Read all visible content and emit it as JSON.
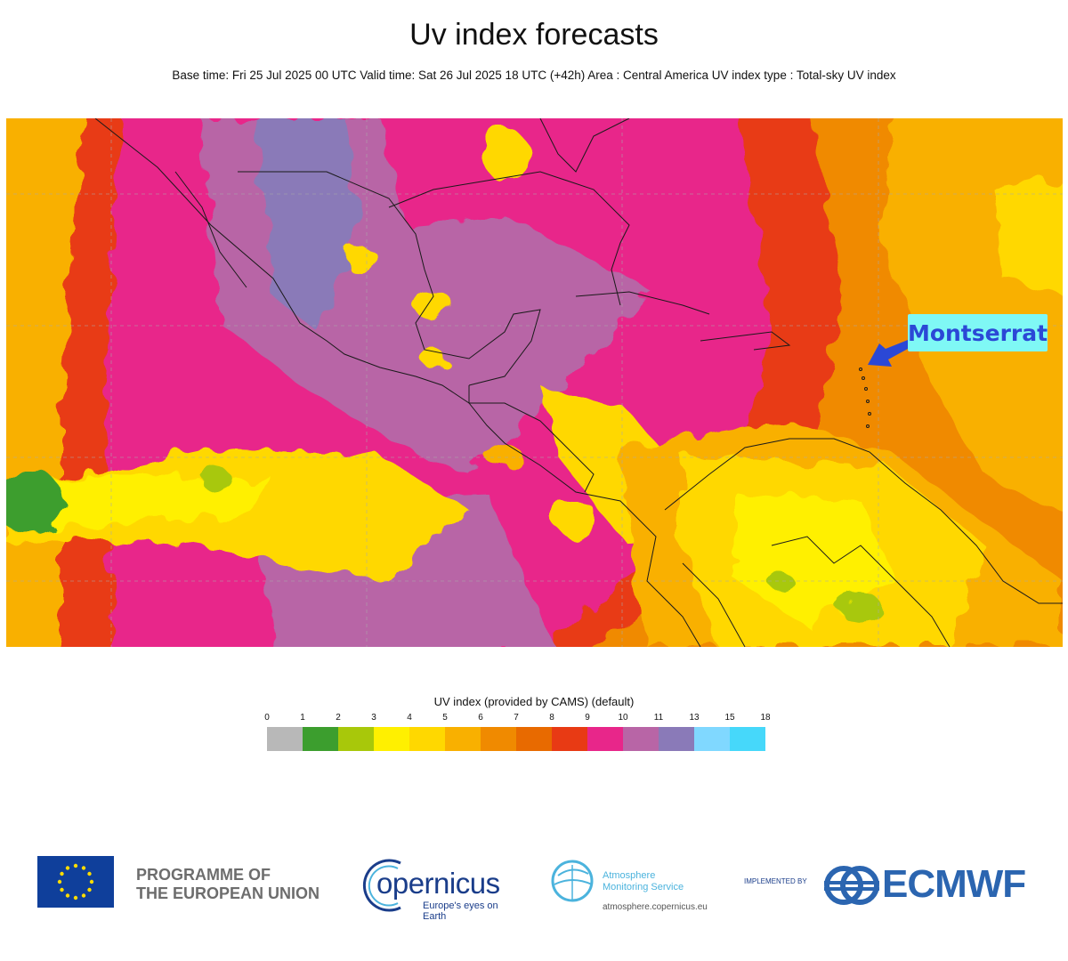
{
  "title": "Uv index forecasts",
  "subtitle": "Base time: Fri 25 Jul 2025 00 UTC Valid time: Sat 26 Jul 2025 18 UTC (+42h) Area : Central America UV index type : Total-sky UV index",
  "annotation": {
    "label": "Montserrat",
    "color": "#2b48d6",
    "background": "#7ff8f5"
  },
  "legend": {
    "title": "UV index (provided by CAMS) (default)",
    "ticks": [
      "0",
      "1",
      "2",
      "3",
      "4",
      "5",
      "6",
      "7",
      "8",
      "9",
      "10",
      "11",
      "13",
      "15",
      "18"
    ],
    "colors": [
      "#b8b8b8",
      "#3c9e2e",
      "#a8c80a",
      "#fff000",
      "#ffd800",
      "#f9b000",
      "#f08a00",
      "#e86a00",
      "#e83a14",
      "#e8268a",
      "#b865a6",
      "#8a7ab8",
      "#80d8ff",
      "#46d8fa"
    ]
  },
  "footer": {
    "eu_text_line1": "PROGRAMME OF",
    "eu_text_line2": "THE EUROPEAN UNION",
    "copernicus_word": "opernicus",
    "copernicus_tagline": "Europe's eyes on Earth",
    "cams_line1": "Atmosphere",
    "cams_line2": "Monitoring Service",
    "cams_url": "atmosphere.copernicus.eu",
    "implemented_by": "IMPLEMENTED BY",
    "ecmwf": "ECMWF"
  }
}
